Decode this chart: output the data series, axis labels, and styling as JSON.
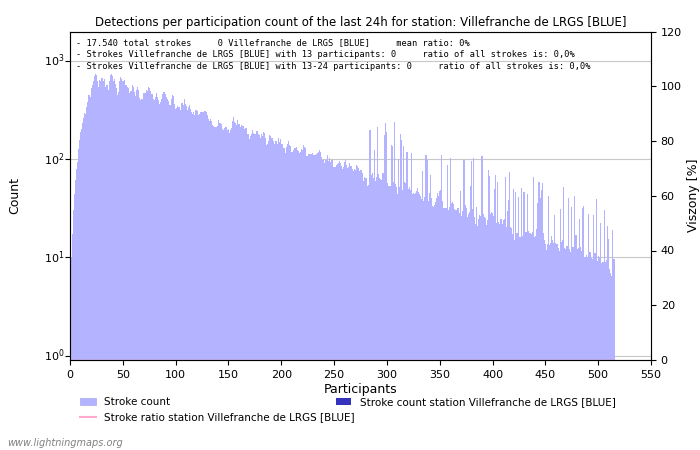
{
  "title": "Detections per participation count of the last 24h for station: Villefranche de LRGS [BLUE]",
  "xlabel": "Participants",
  "ylabel_left": "Count",
  "ylabel_right": "Viszony [%]",
  "annotation_lines": [
    "17.540 total strokes     0 Villefranche de LRGS [BLUE]     mean ratio: 0%",
    "Strokes Villefranche de LRGS [BLUE] with 13 participants: 0     ratio of all strokes is: 0,0%",
    "Strokes Villefranche de LRGS [BLUE] with 13-24 participants: 0     ratio of all strokes is: 0,0%"
  ],
  "bar_color_light": "#b3b3ff",
  "bar_color_dark": "#3333bb",
  "ratio_line_color": "#ffaacc",
  "grid_color": "#c8c8c8",
  "watermark": "www.lightningmaps.org",
  "legend_items": [
    {
      "label": "Stroke count",
      "color": "#b3b3ff"
    },
    {
      "label": "Stroke count station Villefranche de LRGS [BLUE]",
      "color": "#3333bb"
    },
    {
      "label": "Stroke ratio station Villefranche de LRGS [BLUE]",
      "color": "#ffaacc"
    }
  ],
  "xlim": [
    0,
    550
  ],
  "ylim_right": [
    0,
    120
  ],
  "x_ticks": [
    0,
    50,
    100,
    150,
    200,
    250,
    300,
    350,
    400,
    450,
    500,
    550
  ],
  "y_ticks_right": [
    0,
    20,
    40,
    60,
    80,
    100,
    120
  ],
  "ytick_vals": [
    1,
    10,
    100,
    1000
  ],
  "ytick_labels": [
    "10^0",
    "10^1",
    "10^2",
    "10^3"
  ],
  "figsize": [
    7.0,
    4.5
  ],
  "dpi": 100
}
